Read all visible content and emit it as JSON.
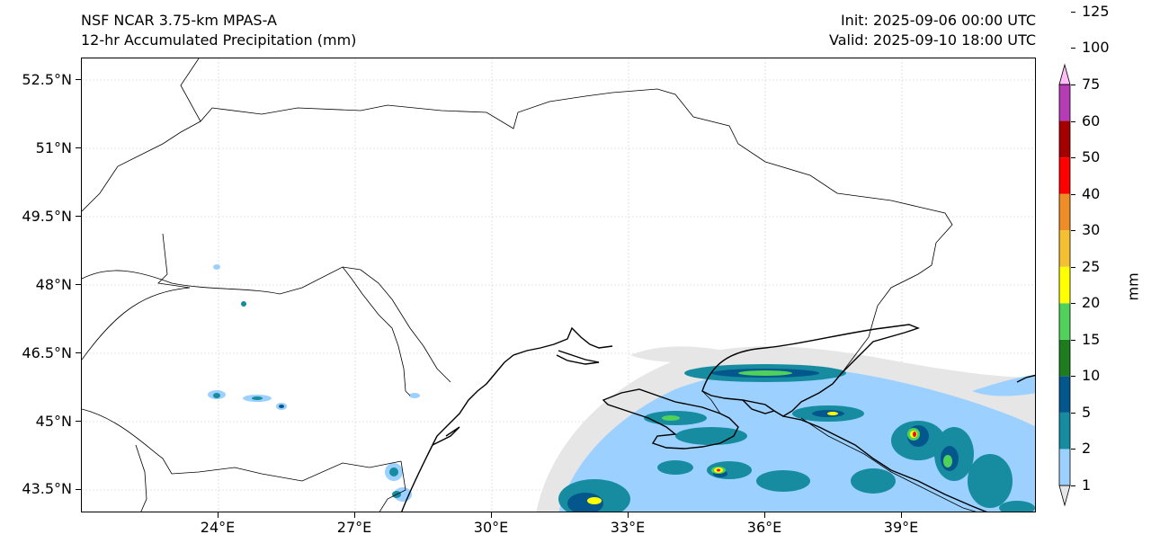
{
  "header": {
    "model": "NSF NCAR 3.75-km MPAS-A",
    "field": "12-hr Accumulated Precipitation (mm)",
    "init": "Init: 2025-09-06 00:00 UTC",
    "valid": "Valid: 2025-09-10 18:00 UTC"
  },
  "map": {
    "lat_labels": [
      "52.5°N",
      "51°N",
      "49.5°N",
      "48°N",
      "46.5°N",
      "45°N",
      "43.5°N"
    ],
    "lon_labels": [
      "24°E",
      "27°E",
      "30°E",
      "33°E",
      "36°E",
      "39°E"
    ]
  },
  "colorbar": {
    "unit": "mm",
    "levels": [
      "1",
      "2",
      "5",
      "10",
      "15",
      "20",
      "25",
      "30",
      "40",
      "50",
      "60",
      "75",
      "100",
      "125"
    ],
    "colors": [
      "#e6e6e6",
      "#9bd0ff",
      "#178ca0",
      "#04578c",
      "#1e7b1e",
      "#50d25a",
      "#ffff00",
      "#f5c030",
      "#ee8c28",
      "#ff0000",
      "#a50000",
      "#b43cb4",
      "#ffbef5"
    ]
  }
}
